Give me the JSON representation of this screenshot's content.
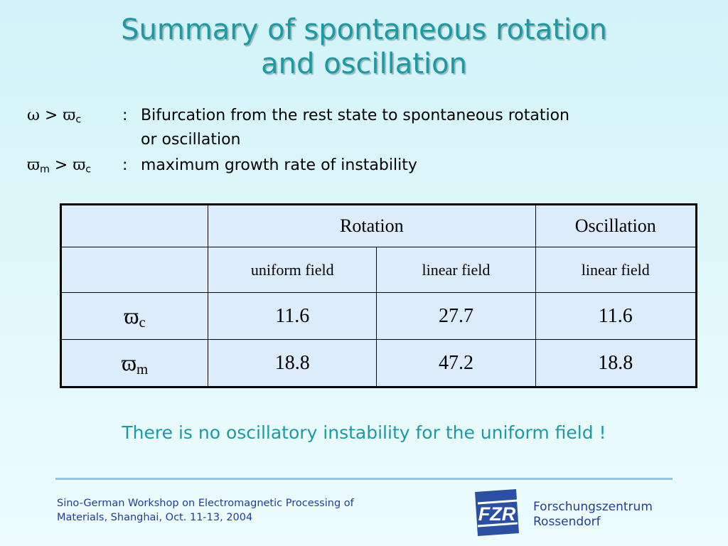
{
  "slide": {
    "title_line1": "Summary of spontaneous rotation",
    "title_line2": "and oscillation",
    "definitions": [
      {
        "symbol": "ω",
        "gt": ">",
        "symbol2": "ϖ",
        "sub2": "c",
        "colon": ":",
        "text": "Bifurcation from the rest state to spontaneous rotation",
        "text_cont": "or oscillation"
      },
      {
        "symbol": "ϖ",
        "sub": "m",
        "gt": ">",
        "symbol2": "ϖ",
        "sub2": "c",
        "colon": ":",
        "text": "maximum growth rate of instability"
      }
    ],
    "table": {
      "header1": {
        "rotation": "Rotation",
        "oscillation": "Oscillation"
      },
      "header2": [
        "uniform field",
        "linear field",
        "linear field"
      ],
      "rows": [
        {
          "symbol": "ϖ",
          "sub": "c",
          "values": [
            "11.6",
            "27.7",
            "11.6"
          ]
        },
        {
          "symbol": "ϖ",
          "sub": "m",
          "values": [
            "18.8",
            "47.2",
            "18.8"
          ]
        }
      ]
    },
    "conclusion": "There is no oscillatory instability for the uniform field !",
    "footer": {
      "left_line1": "Sino-German Workshop on Electromagnetic Processing of",
      "left_line2": "Materials, Shanghai, Oct. 11-13, 2004",
      "logo_text": "FZR",
      "right_line1": "Forschungszentrum",
      "right_line2": "Rossendorf"
    },
    "colors": {
      "title": "#1a9aa4",
      "footer_text": "#1f3d9e",
      "table_bg": "#dcecfb",
      "divider": "#8cc7ec"
    }
  }
}
